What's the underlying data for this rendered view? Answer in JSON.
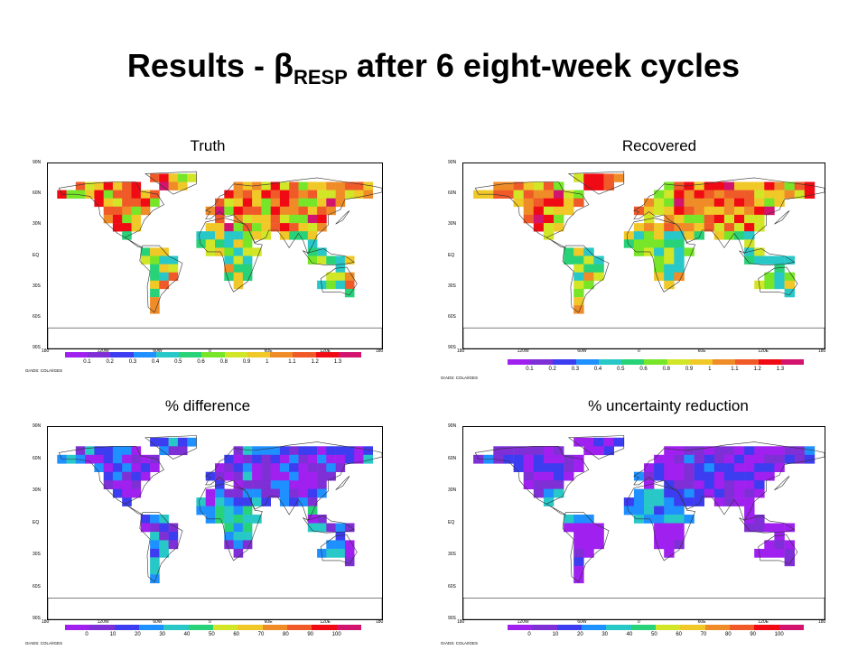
{
  "slide": {
    "title_prefix": "Results - ",
    "beta": "β",
    "subscript": "RESP",
    "title_suffix": " after 6 eight-week cycles"
  },
  "panels": [
    {
      "id": "truth",
      "title": "Truth",
      "palette": "abs",
      "seed": 11,
      "cbar_labels": [
        "0.1",
        "0.2",
        "0.3",
        "0.4",
        "0.5",
        "0.6",
        "0.8",
        "0.9",
        "1",
        "1.1",
        "1.2",
        "1.3"
      ]
    },
    {
      "id": "recovered",
      "title": "Recovered",
      "palette": "abs",
      "seed": 23,
      "cbar_labels": [
        "0.1",
        "0.2",
        "0.3",
        "0.4",
        "0.5",
        "0.6",
        "0.8",
        "0.9",
        "1",
        "1.1",
        "1.2",
        "1.3"
      ]
    },
    {
      "id": "difference",
      "title": "% difference",
      "palette": "pct_diff",
      "seed": 37,
      "cbar_labels": [
        "0",
        "10",
        "20",
        "30",
        "40",
        "50",
        "60",
        "70",
        "80",
        "90",
        "100"
      ]
    },
    {
      "id": "uncertainty",
      "title": "% uncertainty reduction",
      "palette": "pct_unc",
      "seed": 53,
      "cbar_labels": [
        "0",
        "10",
        "20",
        "30",
        "40",
        "50",
        "60",
        "70",
        "80",
        "90",
        "100"
      ]
    }
  ],
  "lat_labels": [
    "90N",
    "60N",
    "30N",
    "EQ",
    "30S",
    "60S",
    "90S"
  ],
  "lon_labels": [
    "180",
    "120W",
    "60W",
    "0",
    "60E",
    "120E",
    "180"
  ],
  "grads_credit": "GrADS: COLA/IGES",
  "colors": {
    "scale": [
      "#a020f0",
      "#7f2fd6",
      "#3c3cf0",
      "#1e90ff",
      "#28c8c8",
      "#28d278",
      "#78e628",
      "#d2e628",
      "#f0c828",
      "#f08c28",
      "#f05a28",
      "#f00a14",
      "#d2146e"
    ]
  }
}
